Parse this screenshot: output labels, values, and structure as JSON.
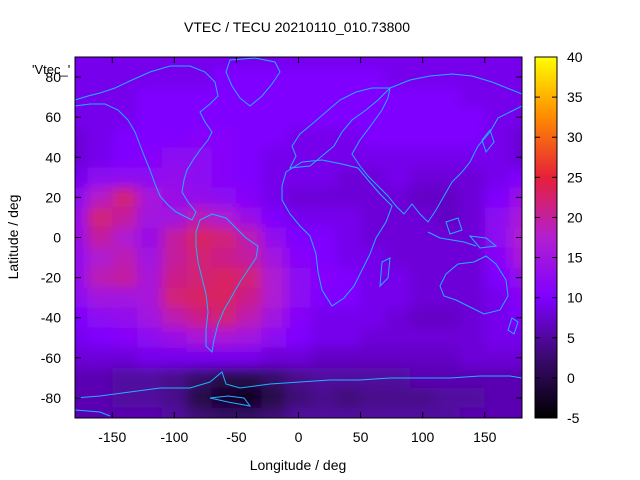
{
  "chart_data": {
    "type": "heatmap",
    "title": "VTEC / TECU 20210110_010.73800",
    "xlabel": "Longitude / deg",
    "ylabel": "Latitude / deg",
    "xlim": [
      -180,
      180
    ],
    "ylim": [
      -90,
      90
    ],
    "xticks": [
      -150,
      -100,
      -50,
      0,
      50,
      100,
      150
    ],
    "yticks": [
      -80,
      -60,
      -40,
      -20,
      0,
      20,
      40,
      60,
      80
    ],
    "colorbar": {
      "range": [
        -5,
        40
      ],
      "ticks": [
        -5,
        0,
        5,
        10,
        15,
        20,
        25,
        30,
        35,
        40
      ],
      "palette": [
        "#000000",
        "#3a0a6e",
        "#7f00ff",
        "#b21fd0",
        "#e6203a",
        "#ff8a00",
        "#ffff00"
      ]
    },
    "key_label": "'Vtec_'",
    "map_overlay": "coastlines",
    "coastline_color": "#1fb2ff",
    "field": {
      "lon": [
        -180,
        -160,
        -140,
        -120,
        -100,
        -80,
        -60,
        -40,
        -20,
        0,
        20,
        40,
        60,
        80,
        100,
        120,
        140,
        160,
        180
      ],
      "lat": [
        90,
        80,
        70,
        60,
        50,
        40,
        30,
        20,
        10,
        0,
        -10,
        -20,
        -30,
        -40,
        -50,
        -60,
        -70,
        -80,
        -90
      ],
      "values": [
        [
          9,
          9,
          9,
          9,
          9,
          9,
          9,
          9,
          9,
          9,
          9,
          9,
          9,
          9,
          9,
          9,
          9,
          9,
          9
        ],
        [
          9,
          9,
          9,
          9,
          9,
          9,
          10,
          10,
          10,
          10,
          10,
          10,
          10,
          9,
          9,
          9,
          9,
          9,
          9
        ],
        [
          9,
          9,
          9,
          10,
          10,
          10,
          10,
          10,
          10,
          10,
          10,
          10,
          10,
          10,
          10,
          10,
          9,
          9,
          9
        ],
        [
          9,
          9,
          9,
          10,
          10,
          10,
          10,
          10,
          10,
          10,
          10,
          10,
          10,
          10,
          10,
          10,
          10,
          9,
          9
        ],
        [
          8,
          9,
          10,
          10,
          10,
          11,
          11,
          10,
          10,
          9,
          9,
          9,
          10,
          10,
          10,
          10,
          10,
          9,
          8
        ],
        [
          8,
          9,
          10,
          11,
          12,
          12,
          11,
          10,
          9,
          9,
          9,
          9,
          9,
          9,
          9,
          9,
          9,
          9,
          8
        ],
        [
          9,
          12,
          12,
          12,
          13,
          12,
          11,
          10,
          9,
          9,
          9,
          8,
          8,
          9,
          8,
          8,
          8,
          9,
          10
        ],
        [
          12,
          18,
          22,
          16,
          14,
          13,
          12,
          11,
          9,
          8,
          8,
          8,
          8,
          8,
          7,
          7,
          8,
          10,
          14
        ],
        [
          14,
          22,
          20,
          15,
          15,
          19,
          17,
          14,
          10,
          9,
          9,
          9,
          8,
          8,
          8,
          7,
          8,
          12,
          16
        ],
        [
          14,
          20,
          17,
          14,
          20,
          23,
          22,
          19,
          13,
          10,
          10,
          9,
          8,
          8,
          8,
          8,
          8,
          12,
          17
        ],
        [
          13,
          17,
          19,
          15,
          20,
          22,
          21,
          20,
          15,
          11,
          10,
          9,
          9,
          8,
          8,
          8,
          8,
          11,
          16
        ],
        [
          13,
          19,
          20,
          16,
          21,
          22,
          23,
          22,
          17,
          12,
          11,
          10,
          9,
          9,
          8,
          8,
          8,
          10,
          13
        ],
        [
          12,
          15,
          15,
          16,
          22,
          23,
          23,
          21,
          17,
          12,
          10,
          10,
          9,
          9,
          8,
          8,
          8,
          9,
          11
        ],
        [
          10,
          12,
          13,
          15,
          19,
          21,
          22,
          19,
          15,
          11,
          9,
          9,
          9,
          8,
          7,
          7,
          8,
          9,
          10
        ],
        [
          9,
          10,
          11,
          12,
          14,
          16,
          16,
          15,
          12,
          10,
          9,
          9,
          8,
          8,
          8,
          8,
          8,
          9,
          9
        ],
        [
          8,
          8,
          8,
          9,
          9,
          9,
          9,
          9,
          8,
          8,
          7,
          7,
          7,
          7,
          7,
          7,
          8,
          8,
          8
        ],
        [
          6,
          6,
          5,
          5,
          4,
          2,
          0,
          0,
          2,
          4,
          5,
          5,
          5,
          5,
          6,
          6,
          6,
          6,
          6
        ],
        [
          6,
          6,
          5,
          5,
          4,
          0,
          -2,
          -3,
          0,
          3,
          4,
          3,
          4,
          4,
          4,
          5,
          5,
          6,
          6
        ],
        [
          6,
          6,
          6,
          6,
          5,
          3,
          2,
          2,
          3,
          5,
          5,
          5,
          5,
          5,
          5,
          5,
          6,
          6,
          6
        ]
      ]
    }
  }
}
